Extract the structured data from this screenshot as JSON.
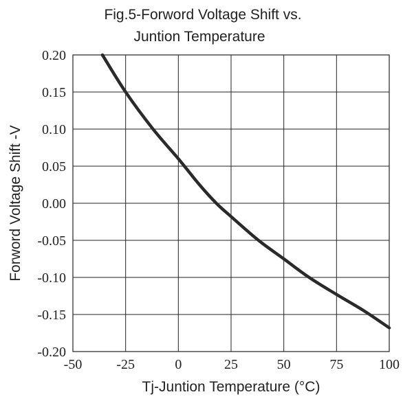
{
  "chart_data": {
    "type": "line",
    "title_line1": "Fig.5-Forword Voltage Shift vs.",
    "title_line2": "Juntion Temperature",
    "xlabel": "Tj-Juntion Temperature (°C)",
    "ylabel": "Forword Voltage Shift -V",
    "xlim": [
      -50,
      100
    ],
    "ylim": [
      -0.2,
      0.2
    ],
    "x_ticks": [
      "-50",
      "-25",
      "0",
      "25",
      "50",
      "75",
      "100"
    ],
    "y_ticks": [
      "0.20",
      "0.15",
      "0.10",
      "0.05",
      "0.00",
      "-0.05",
      "-0.10",
      "-0.15",
      "-0.20"
    ],
    "grid": true,
    "series": [
      {
        "x": [
          -36,
          -25,
          -12,
          0,
          10,
          18,
          25,
          38,
          50,
          62,
          75,
          88,
          100
        ],
        "y": [
          0.2,
          0.15,
          0.1,
          0.06,
          0.025,
          0.0,
          -0.018,
          -0.05,
          -0.075,
          -0.1,
          -0.123,
          -0.145,
          -0.168
        ]
      }
    ]
  }
}
